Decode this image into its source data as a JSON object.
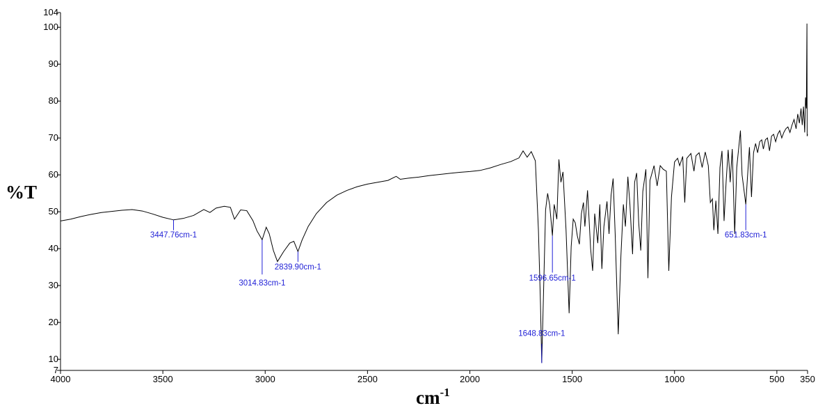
{
  "chart_data": {
    "type": "line",
    "title": "",
    "xlabel": "cm",
    "xlabel_superscript": "-1",
    "ylabel": "%T",
    "xlim": [
      4000,
      350
    ],
    "ylim": [
      7,
      104
    ],
    "x_reversed": true,
    "xticks": [
      4000,
      3500,
      3000,
      2500,
      2000,
      1500,
      1000,
      500,
      350
    ],
    "yticks": [
      7,
      10,
      20,
      30,
      40,
      50,
      60,
      70,
      80,
      90,
      100,
      104
    ],
    "grid": false,
    "series": [
      {
        "color": "#000000",
        "points": [
          [
            4000,
            47.5
          ],
          [
            3950,
            48.0
          ],
          [
            3900,
            48.7
          ],
          [
            3850,
            49.3
          ],
          [
            3800,
            49.8
          ],
          [
            3750,
            50.1
          ],
          [
            3700,
            50.4
          ],
          [
            3650,
            50.6
          ],
          [
            3600,
            50.2
          ],
          [
            3550,
            49.4
          ],
          [
            3500,
            48.5
          ],
          [
            3447.76,
            47.8
          ],
          [
            3400,
            48.2
          ],
          [
            3350,
            49.0
          ],
          [
            3300,
            50.6
          ],
          [
            3270,
            49.8
          ],
          [
            3240,
            51.0
          ],
          [
            3200,
            51.5
          ],
          [
            3170,
            51.2
          ],
          [
            3150,
            48.0
          ],
          [
            3120,
            50.5
          ],
          [
            3090,
            50.3
          ],
          [
            3060,
            47.6
          ],
          [
            3040,
            44.8
          ],
          [
            3014.83,
            42.4
          ],
          [
            2995,
            45.8
          ],
          [
            2980,
            44.0
          ],
          [
            2960,
            39.5
          ],
          [
            2940,
            36.5
          ],
          [
            2910,
            39.2
          ],
          [
            2880,
            41.5
          ],
          [
            2860,
            42.0
          ],
          [
            2839.9,
            39.2
          ],
          [
            2820,
            42.3
          ],
          [
            2790,
            46.0
          ],
          [
            2750,
            49.5
          ],
          [
            2700,
            52.5
          ],
          [
            2650,
            54.5
          ],
          [
            2600,
            55.8
          ],
          [
            2550,
            56.8
          ],
          [
            2500,
            57.5
          ],
          [
            2450,
            58.0
          ],
          [
            2400,
            58.5
          ],
          [
            2360,
            59.6
          ],
          [
            2340,
            58.8
          ],
          [
            2300,
            59.1
          ],
          [
            2250,
            59.4
          ],
          [
            2200,
            59.8
          ],
          [
            2150,
            60.1
          ],
          [
            2100,
            60.4
          ],
          [
            2050,
            60.7
          ],
          [
            2000,
            60.9
          ],
          [
            1950,
            61.2
          ],
          [
            1900,
            61.9
          ],
          [
            1850,
            62.8
          ],
          [
            1800,
            63.6
          ],
          [
            1760,
            64.6
          ],
          [
            1740,
            66.5
          ],
          [
            1720,
            64.8
          ],
          [
            1700,
            66.3
          ],
          [
            1680,
            63.8
          ],
          [
            1665,
            45.0
          ],
          [
            1655,
            25.0
          ],
          [
            1648.83,
            9.0
          ],
          [
            1640,
            28.0
          ],
          [
            1630,
            50.5
          ],
          [
            1620,
            55.0
          ],
          [
            1610,
            51.8
          ],
          [
            1596.65,
            43.5
          ],
          [
            1588,
            52.0
          ],
          [
            1575,
            48.0
          ],
          [
            1565,
            64.2
          ],
          [
            1555,
            58.0
          ],
          [
            1545,
            60.8
          ],
          [
            1530,
            45.0
          ],
          [
            1515,
            22.5
          ],
          [
            1505,
            40.5
          ],
          [
            1495,
            48.0
          ],
          [
            1485,
            47.0
          ],
          [
            1475,
            43.5
          ],
          [
            1465,
            41.2
          ],
          [
            1455,
            49.5
          ],
          [
            1445,
            52.5
          ],
          [
            1438,
            46.0
          ],
          [
            1425,
            55.8
          ],
          [
            1410,
            40.0
          ],
          [
            1400,
            34.0
          ],
          [
            1390,
            49.5
          ],
          [
            1375,
            41.5
          ],
          [
            1365,
            52.0
          ],
          [
            1355,
            34.5
          ],
          [
            1345,
            46.0
          ],
          [
            1330,
            52.8
          ],
          [
            1320,
            44.0
          ],
          [
            1310,
            54.5
          ],
          [
            1300,
            59.0
          ],
          [
            1290,
            44.0
          ],
          [
            1275,
            16.8
          ],
          [
            1262,
            38.0
          ],
          [
            1250,
            52.0
          ],
          [
            1240,
            46.0
          ],
          [
            1228,
            59.5
          ],
          [
            1218,
            52.0
          ],
          [
            1205,
            38.5
          ],
          [
            1195,
            58.0
          ],
          [
            1185,
            60.5
          ],
          [
            1175,
            47.0
          ],
          [
            1165,
            39.5
          ],
          [
            1155,
            55.5
          ],
          [
            1140,
            61.5
          ],
          [
            1130,
            32.0
          ],
          [
            1120,
            58.5
          ],
          [
            1100,
            62.5
          ],
          [
            1085,
            57.0
          ],
          [
            1070,
            62.5
          ],
          [
            1055,
            61.5
          ],
          [
            1040,
            61.0
          ],
          [
            1028,
            34.0
          ],
          [
            1015,
            54.0
          ],
          [
            1000,
            63.5
          ],
          [
            985,
            64.5
          ],
          [
            975,
            62.5
          ],
          [
            960,
            65.0
          ],
          [
            950,
            52.5
          ],
          [
            940,
            64.5
          ],
          [
            920,
            65.8
          ],
          [
            905,
            61.0
          ],
          [
            895,
            65.2
          ],
          [
            880,
            66.0
          ],
          [
            865,
            62.0
          ],
          [
            850,
            66.2
          ],
          [
            835,
            62.5
          ],
          [
            825,
            52.5
          ],
          [
            815,
            53.5
          ],
          [
            808,
            45.0
          ],
          [
            798,
            53.0
          ],
          [
            788,
            44.0
          ],
          [
            778,
            62.0
          ],
          [
            768,
            66.5
          ],
          [
            758,
            47.5
          ],
          [
            748,
            58.0
          ],
          [
            738,
            66.8
          ],
          [
            728,
            58.0
          ],
          [
            718,
            67.0
          ],
          [
            706,
            44.0
          ],
          [
            696,
            62.0
          ],
          [
            686,
            67.5
          ],
          [
            678,
            72.0
          ],
          [
            670,
            60.0
          ],
          [
            651.83,
            52.0
          ],
          [
            644,
            59.0
          ],
          [
            634,
            67.5
          ],
          [
            624,
            54.0
          ],
          [
            614,
            66.0
          ],
          [
            604,
            68.5
          ],
          [
            594,
            66.0
          ],
          [
            584,
            69.0
          ],
          [
            574,
            69.5
          ],
          [
            566,
            67.0
          ],
          [
            556,
            69.5
          ],
          [
            546,
            70.0
          ],
          [
            536,
            66.5
          ],
          [
            526,
            70.5
          ],
          [
            516,
            71.0
          ],
          [
            506,
            69.0
          ],
          [
            496,
            71.0
          ],
          [
            486,
            72.0
          ],
          [
            476,
            70.0
          ],
          [
            466,
            71.5
          ],
          [
            456,
            72.5
          ],
          [
            446,
            73.0
          ],
          [
            436,
            71.5
          ],
          [
            426,
            73.5
          ],
          [
            416,
            75.0
          ],
          [
            406,
            72.5
          ],
          [
            398,
            76.5
          ],
          [
            390,
            74.0
          ],
          [
            382,
            78.0
          ],
          [
            376,
            73.5
          ],
          [
            370,
            78.5
          ],
          [
            364,
            71.5
          ],
          [
            360,
            81.0
          ],
          [
            356,
            78.0
          ],
          [
            353,
            101.0
          ],
          [
            352,
            70.5
          ],
          [
            350,
            71.0
          ]
        ]
      }
    ],
    "peaks": [
      {
        "x": 3447.76,
        "label": "3447.76cm-1",
        "line_from_y": 47.8,
        "line_to_y": 45.0,
        "label_y": 43.0
      },
      {
        "x": 3014.83,
        "label": "3014.83cm-1",
        "line_from_y": 42.4,
        "line_to_y": 33.0,
        "label_y": 30.0
      },
      {
        "x": 2839.9,
        "label": "2839.90cm-1",
        "line_from_y": 39.2,
        "line_to_y": 36.4,
        "label_y": 34.4
      },
      {
        "x": 1648.83,
        "label": "1648.83cm-1",
        "line_from_y": 9.0,
        "line_to_y": 14.2,
        "label_y": 16.3
      },
      {
        "x": 1596.65,
        "label": "1596.65cm-1",
        "line_from_y": 43.5,
        "line_to_y": 33.5,
        "label_y": 31.3
      },
      {
        "x": 651.83,
        "label": "651.83cm-1",
        "line_from_y": 52.0,
        "line_to_y": 45.0,
        "label_y": 43.0
      }
    ]
  }
}
